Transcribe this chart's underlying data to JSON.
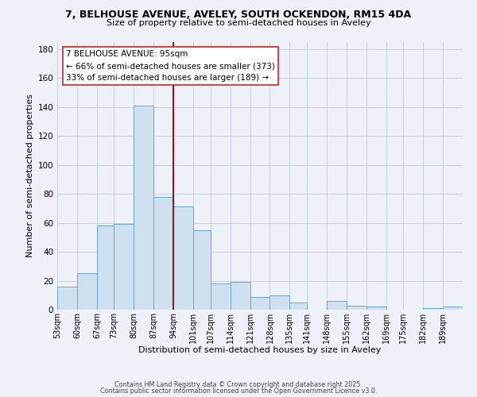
{
  "title_line1": "7, BELHOUSE AVENUE, AVELEY, SOUTH OCKENDON, RM15 4DA",
  "title_line2": "Size of property relative to semi-detached houses in Aveley",
  "xlabel": "Distribution of semi-detached houses by size in Aveley",
  "ylabel": "Number of semi-detached properties",
  "bin_labels": [
    "53sqm",
    "60sqm",
    "67sqm",
    "73sqm",
    "80sqm",
    "87sqm",
    "94sqm",
    "101sqm",
    "107sqm",
    "114sqm",
    "121sqm",
    "128sqm",
    "135sqm",
    "141sqm",
    "148sqm",
    "155sqm",
    "162sqm",
    "169sqm",
    "175sqm",
    "182sqm",
    "189sqm"
  ],
  "bin_edges": [
    53,
    60,
    67,
    73,
    80,
    87,
    94,
    101,
    107,
    114,
    121,
    128,
    135,
    141,
    148,
    155,
    162,
    169,
    175,
    182,
    189
  ],
  "bar_heights": [
    16,
    25,
    58,
    59,
    141,
    78,
    71,
    55,
    18,
    19,
    9,
    10,
    5,
    0,
    6,
    3,
    2,
    0,
    0,
    1,
    2
  ],
  "bar_color": "#cfe0f0",
  "bar_edge_color": "#6aaad4",
  "bar_edge_width": 0.7,
  "grid_color": "#c0ccd8",
  "background_color": "#eef2f8",
  "vline_x": 94,
  "vline_color": "#8b1a1a",
  "annotation_line1": "7 BELHOUSE AVENUE: 95sqm",
  "annotation_line2": "← 66% of semi-detached houses are smaller (373)",
  "annotation_line3": "33% of semi-detached houses are larger (189) →",
  "annotation_box_color": "#ffffff",
  "annotation_box_edge": "#cc2222",
  "ylim": [
    0,
    185
  ],
  "yticks": [
    0,
    20,
    40,
    60,
    80,
    100,
    120,
    140,
    160,
    180
  ],
  "footnote1": "Contains HM Land Registry data © Crown copyright and database right 2025.",
  "footnote2": "Contains public sector information licensed under the Open Government Licence v3.0."
}
